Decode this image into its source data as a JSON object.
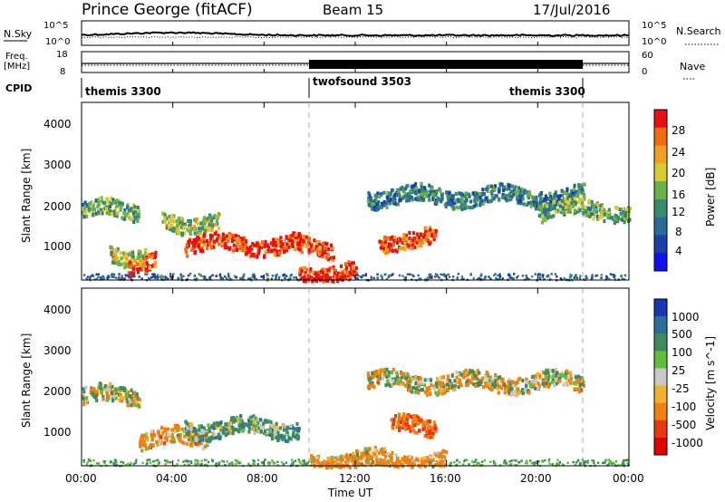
{
  "header": {
    "station": "Prince George (fitACF)",
    "beam": "Beam 15",
    "date": "17/Jul/2016"
  },
  "top_panel": {
    "nsky_label": "N.Sky",
    "nsearch_label": "N.Search",
    "freq_label_1": "Freq.",
    "freq_label_2": "[MHz]",
    "nave_label": "Nave",
    "cpid_label": "CPID",
    "nsky_ticks": [
      "10^5",
      "10^0"
    ],
    "nsearch_ticks": [
      "10^5",
      "10^0"
    ],
    "freq_ticks": [
      "18",
      "8"
    ],
    "nave_ticks": [
      "60",
      "0"
    ],
    "cpid_segments": [
      {
        "name": "themis 3300",
        "start": 0.0,
        "end": 10.0
      },
      {
        "name": "twofsound 3503",
        "start": 10.0,
        "end": 22.0
      },
      {
        "name": "themis 3300",
        "start": 18.9,
        "end": 22.0
      }
    ]
  },
  "power_panel": {
    "ylabel": "Slant Range [km]",
    "yticks": [
      "4000",
      "3000",
      "2000",
      "1000"
    ],
    "colorbar_label": "Power [dB]",
    "colorbar_ticks": [
      "28",
      "24",
      "20",
      "16",
      "12",
      "8",
      "4"
    ],
    "colors": [
      "#1010f0",
      "#1a3fa6",
      "#2a6a9a",
      "#3b8c6a",
      "#6bb04a",
      "#d6cc30",
      "#f0a020",
      "#f06a10",
      "#e81010"
    ]
  },
  "velocity_panel": {
    "ylabel": "Slant Range [km]",
    "yticks": [
      "4000",
      "3000",
      "2000",
      "1000"
    ],
    "colorbar_label": "Velocity [m s^-1]",
    "colorbar_ticks": [
      "1000",
      "500",
      "100",
      "25",
      "-25",
      "-100",
      "-500",
      "-1000"
    ],
    "colors": [
      "#1a35b0",
      "#2e6e9e",
      "#3f8a5e",
      "#5cc03a",
      "#c8c8c8",
      "#f0b030",
      "#f08010",
      "#e83a10",
      "#e00000"
    ]
  },
  "x_axis": {
    "ticks": [
      "00:00",
      "04:00",
      "08:00",
      "12:00",
      "16:00",
      "20:00",
      "00:00"
    ],
    "label": "Time UT"
  },
  "chart_data": [
    {
      "type": "heatmap",
      "title": "Power",
      "xlabel": "Time UT",
      "ylabel": "Slant Range [km]",
      "xlim": [
        0,
        24
      ],
      "ylim": [
        180,
        4600
      ],
      "zlabel": "Power [dB]",
      "zlim": [
        0,
        30
      ],
      "features": [
        {
          "t_start": 0.0,
          "t_end": 2.5,
          "range": 1950,
          "power": 14
        },
        {
          "t_start": 1.2,
          "t_end": 2.8,
          "range": 850,
          "power": 16
        },
        {
          "t_start": 2.0,
          "t_end": 3.2,
          "range": 600,
          "power": 26
        },
        {
          "t_start": 3.5,
          "t_end": 6.0,
          "range": 1650,
          "power": 16
        },
        {
          "t_start": 4.5,
          "t_end": 9.5,
          "range": 1100,
          "power": 28
        },
        {
          "t_start": 9.5,
          "t_end": 11.0,
          "range": 1050,
          "power": 26
        },
        {
          "t_start": 9.5,
          "t_end": 12.0,
          "range": 400,
          "power": 28
        },
        {
          "t_start": 13.0,
          "t_end": 15.5,
          "range": 1200,
          "power": 26
        },
        {
          "t_start": 12.5,
          "t_end": 22.0,
          "range": 2300,
          "power": 10
        },
        {
          "t_start": 20.0,
          "t_end": 24.0,
          "range": 1950,
          "power": 14
        }
      ]
    },
    {
      "type": "heatmap",
      "title": "Velocity",
      "xlabel": "Time UT",
      "ylabel": "Slant Range [km]",
      "xlim": [
        0,
        24
      ],
      "ylim": [
        180,
        4600
      ],
      "zlabel": "Velocity [m s^-1]",
      "zlim": [
        -1000,
        1000
      ],
      "features": [
        {
          "t_start": 0.0,
          "t_end": 2.5,
          "range": 1950,
          "velocity": 0
        },
        {
          "t_start": 2.5,
          "t_end": 5.5,
          "range": 900,
          "velocity": -150
        },
        {
          "t_start": 4.5,
          "t_end": 9.5,
          "range": 1150,
          "velocity": 150
        },
        {
          "t_start": 13.5,
          "t_end": 15.5,
          "range": 1200,
          "velocity": -300
        },
        {
          "t_start": 12.5,
          "t_end": 22.0,
          "range": 2300,
          "velocity": 0
        },
        {
          "t_start": 10.0,
          "t_end": 16.0,
          "range": 350,
          "velocity": -100
        }
      ]
    }
  ]
}
